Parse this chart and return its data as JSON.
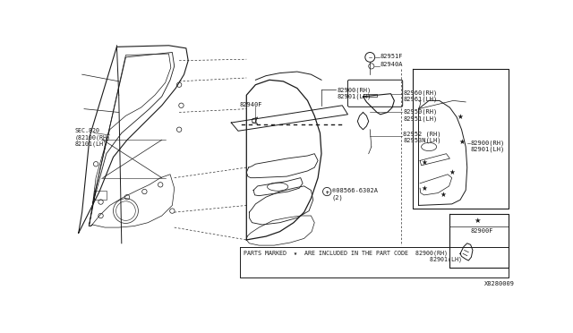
{
  "bg_color": "#ffffff",
  "line_color": "#1a1a1a",
  "text_color": "#1a1a1a",
  "diagram_id": "X8280009",
  "footnote": "PARTS MARKED  ★  ARE INCLUDED IN THE PART CODE  82900(RH)\n                                                    82901(LH)",
  "labels": {
    "sec020": "SEC.820\n(82100(RH)\n82101(LH)",
    "strip_top": "82900(RH)\n82901(LH)",
    "strip_label": "82940F",
    "screw_top": "82951F",
    "screw_mid": "82940A",
    "handle_60": "82960(RH)\n82961(LH)",
    "handle_50": "82950(RH)\n82951(LH)",
    "handle_52": "82952 (RH)\n82953N(LH)",
    "screw_panel": "®08566-6302A\n(2)",
    "panel_label": "82900(RH)\n82901(LH)",
    "small_part": "82900F"
  }
}
